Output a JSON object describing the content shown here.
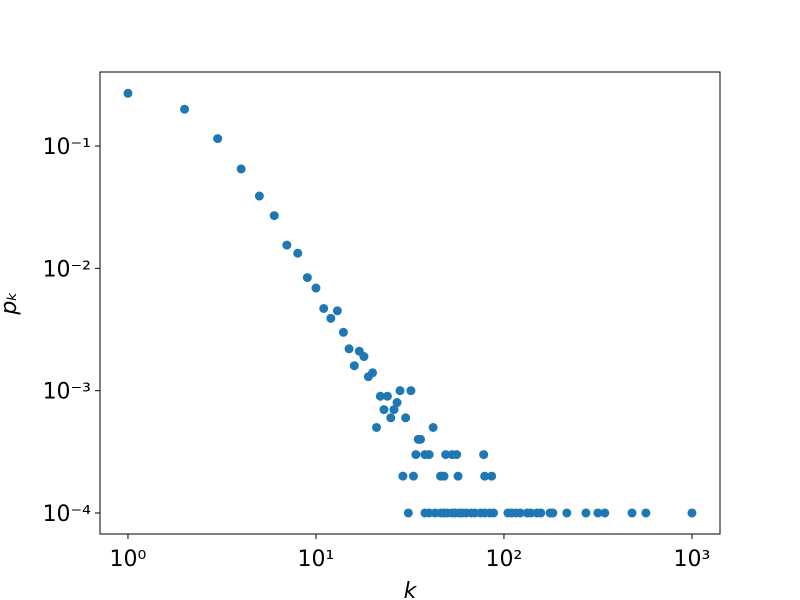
{
  "chart_data": {
    "type": "scatter",
    "xlabel": "k",
    "ylabel": "pₖ",
    "xscale": "log",
    "yscale": "log",
    "xlim": [
      0.71,
      1410
    ],
    "ylim": [
      6.73e-05,
      0.403
    ],
    "xticks": [
      {
        "value": 1,
        "label": "10⁰"
      },
      {
        "value": 10,
        "label": "10¹"
      },
      {
        "value": 100,
        "label": "10²"
      },
      {
        "value": 1000,
        "label": "10³"
      }
    ],
    "yticks": [
      {
        "value": 0.0001,
        "label": "10⁻⁴"
      },
      {
        "value": 0.001,
        "label": "10⁻³"
      },
      {
        "value": 0.01,
        "label": "10⁻²"
      },
      {
        "value": 0.1,
        "label": "10⁻¹"
      }
    ],
    "grid": false,
    "color": "#1f77b4",
    "x": [
      1,
      2,
      3,
      4,
      5,
      6,
      7,
      8,
      9,
      10,
      11,
      12,
      13,
      14,
      15,
      16,
      17,
      18,
      19,
      20,
      21,
      22,
      23,
      24,
      25,
      26,
      27,
      28,
      29,
      30,
      31,
      32,
      33,
      34,
      35,
      36,
      38,
      40,
      42,
      38,
      40,
      43,
      46,
      46,
      48,
      48,
      49,
      50,
      53,
      53,
      55,
      56,
      57,
      58,
      60,
      63,
      67,
      70,
      75,
      78,
      79,
      79,
      84,
      86,
      88,
      105,
      110,
      116,
      122,
      133,
      139,
      150,
      157,
      176,
      182,
      216,
      273,
      316,
      344,
      480,
      569,
      1000
    ],
    "y": [
      0.27,
      0.2,
      0.115,
      0.065,
      0.039,
      0.027,
      0.0155,
      0.0133,
      0.0084,
      0.0069,
      0.0047,
      0.0039,
      0.0045,
      0.003,
      0.0022,
      0.0016,
      0.0021,
      0.0019,
      0.0013,
      0.0014,
      0.0005,
      0.0009,
      0.0007,
      0.0009,
      0.0006,
      0.0007,
      0.0008,
      0.001,
      0.0002,
      0.0006,
      0.0001,
      0.001,
      0.0002,
      0.0003,
      0.0004,
      0.0004,
      0.0003,
      0.0003,
      0.0005,
      0.0001,
      0.0001,
      0.0001,
      0.0001,
      0.0002,
      0.0001,
      0.0002,
      0.0003,
      0.0001,
      0.0001,
      0.0003,
      0.0001,
      0.0003,
      0.0002,
      0.0001,
      0.0001,
      0.0001,
      0.0001,
      0.0001,
      0.0001,
      0.0003,
      0.0001,
      0.0002,
      0.0001,
      0.0002,
      0.0001,
      0.0001,
      0.0001,
      0.0001,
      0.0001,
      0.0001,
      0.0001,
      0.0001,
      0.0001,
      0.0001,
      0.0001,
      0.0001,
      0.0001,
      0.0001,
      0.0001,
      0.0001,
      0.0001,
      0.0001
    ]
  }
}
